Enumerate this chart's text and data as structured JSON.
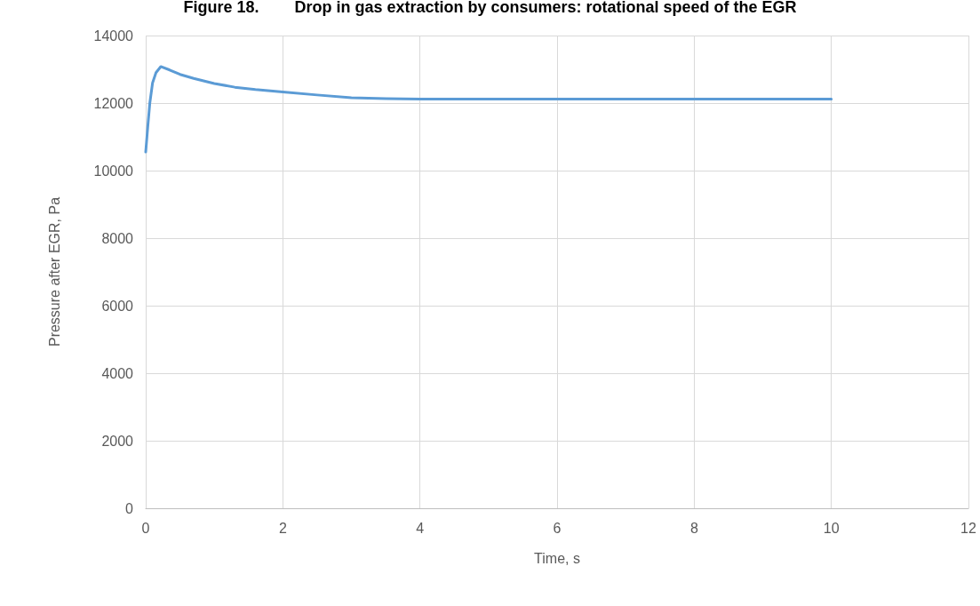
{
  "chart_data": {
    "type": "line",
    "title": "Figure 18.        Drop in gas extraction by consumers: rotational speed of the EGR",
    "xlabel": "Time, s",
    "ylabel": "Pressure after EGR, Pa",
    "x": [
      0,
      0.03,
      0.06,
      0.1,
      0.15,
      0.22,
      0.35,
      0.5,
      0.7,
      1,
      1.3,
      1.6,
      2,
      2.5,
      3,
      3.5,
      4,
      6,
      8,
      10
    ],
    "series": [
      {
        "color": "#5b9bd5",
        "values": [
          10550,
          11300,
          12000,
          12600,
          12900,
          13080,
          12980,
          12850,
          12730,
          12580,
          12470,
          12400,
          12330,
          12240,
          12160,
          12130,
          12120,
          12120,
          12120,
          12120
        ]
      }
    ],
    "xlim": [
      0,
      12
    ],
    "xticks": [
      0,
      2,
      4,
      6,
      8,
      10,
      12
    ],
    "ylim": [
      0,
      14000
    ],
    "yticks": [
      0,
      2000,
      4000,
      6000,
      8000,
      10000,
      12000,
      14000
    ],
    "grid": true,
    "marker": "none",
    "line_style": "solid"
  }
}
